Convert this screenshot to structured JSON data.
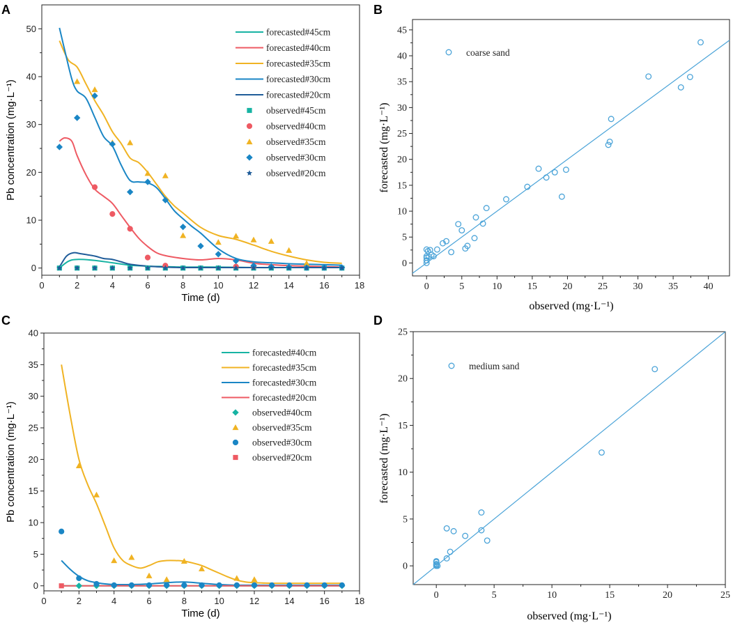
{
  "chart_data": [
    {
      "panel": "A",
      "type": "line",
      "xlabel": "Time (d)",
      "ylabel": "Pb concentration (mg·L⁻¹)",
      "xlim": [
        0,
        18
      ],
      "ylim": [
        -1.5,
        55
      ],
      "xticks": [
        0,
        2,
        4,
        6,
        8,
        10,
        12,
        14,
        16,
        18
      ],
      "yticks": [
        0,
        10,
        20,
        30,
        40,
        50
      ],
      "colors": {
        "45": "#17b3a3",
        "40": "#ee5a63",
        "35": "#f0b323",
        "30": "#1a86c5",
        "20": "#1f5c99"
      },
      "lines": [
        {
          "name": "forecasted#45cm",
          "depth": "45",
          "x": [
            1,
            1.5,
            2,
            3,
            4,
            5,
            6,
            7,
            8,
            10,
            12,
            14,
            16,
            17
          ],
          "y": [
            0,
            1.4,
            1.8,
            1.6,
            1.1,
            0.6,
            0.4,
            0.3,
            0.2,
            0.2,
            0.1,
            0.1,
            0.1,
            0.1
          ]
        },
        {
          "name": "forecasted#40cm",
          "depth": "40",
          "x": [
            1,
            1.3,
            1.7,
            2,
            2.5,
            3,
            3.5,
            4,
            4.5,
            5,
            5.5,
            6,
            6.5,
            7,
            8,
            9,
            10,
            11,
            12,
            13,
            14,
            15,
            16,
            17
          ],
          "y": [
            26.5,
            27.2,
            26.5,
            23.5,
            19.5,
            16.5,
            15,
            13.5,
            11,
            8.5,
            6.2,
            4.5,
            3.2,
            2.6,
            2.0,
            1.7,
            2.0,
            1.7,
            1.0,
            0.7,
            0.5,
            0.4,
            0.3,
            0.2
          ]
        },
        {
          "name": "forecasted#35cm",
          "depth": "35",
          "x": [
            1,
            1.5,
            2,
            2.5,
            3,
            3.5,
            4,
            4.5,
            5,
            5.5,
            6,
            6.5,
            7,
            7.5,
            8,
            9,
            10,
            11,
            12,
            13,
            14,
            15,
            16,
            17
          ],
          "y": [
            47.5,
            43.5,
            42,
            38.5,
            35,
            32,
            28.5,
            26,
            23,
            22,
            20,
            17.5,
            15,
            13,
            11.5,
            8.5,
            6.8,
            6.0,
            4.8,
            3.5,
            2.5,
            1.7,
            1.2,
            1.0
          ]
        },
        {
          "name": "forecasted#30cm",
          "depth": "30",
          "x": [
            1,
            1.3,
            1.7,
            2,
            2.5,
            3,
            3.5,
            4,
            4.5,
            5,
            5.5,
            6,
            6.5,
            7,
            7.5,
            8,
            8.5,
            9,
            10,
            11,
            12,
            13,
            14,
            15,
            16,
            17
          ],
          "y": [
            50.2,
            45.5,
            39.5,
            37,
            35.5,
            31.5,
            27.5,
            25.5,
            21.5,
            18.3,
            18,
            17.8,
            16.8,
            14.5,
            12,
            10.3,
            8.7,
            7.3,
            4.0,
            2.0,
            1.3,
            1.1,
            0.9,
            0.8,
            0.7,
            0.6
          ]
        },
        {
          "name": "forecasted#20cm",
          "depth": "20",
          "x": [
            1,
            1.4,
            1.8,
            2.2,
            3,
            3.5,
            4,
            4.5,
            5,
            6,
            7,
            8,
            10,
            12,
            14,
            16,
            17
          ],
          "y": [
            0.2,
            2.5,
            3.2,
            3.0,
            2.5,
            2.0,
            1.8,
            1.3,
            0.8,
            0.4,
            0.2,
            0.1,
            0.1,
            0.1,
            0.1,
            0.1,
            0.1
          ]
        }
      ],
      "points": [
        {
          "name": "observed#45cm",
          "depth": "45",
          "marker": "square",
          "x": [
            1,
            2,
            3,
            4,
            5,
            6,
            7,
            8,
            9,
            10,
            11,
            12,
            13,
            14,
            15,
            16,
            17
          ],
          "y": [
            0,
            0,
            0,
            0,
            0,
            0,
            0,
            0,
            0,
            0,
            0,
            0,
            0,
            0,
            0,
            0,
            0
          ]
        },
        {
          "name": "observed#40cm",
          "depth": "40",
          "marker": "circle",
          "x": [
            3,
            4,
            5,
            6,
            7,
            11,
            12
          ],
          "y": [
            16.9,
            11.3,
            8.2,
            2.2,
            0.5,
            0.3,
            0.3
          ]
        },
        {
          "name": "observed#35cm",
          "depth": "35",
          "marker": "triangle",
          "x": [
            2,
            3,
            4,
            5,
            6,
            7,
            8,
            10,
            11,
            12,
            13,
            14,
            15
          ],
          "y": [
            39,
            37.3,
            26.2,
            26.2,
            19.8,
            19.3,
            6.8,
            5.4,
            6.7,
            5.9,
            5.6,
            3.7,
            1.0
          ]
        },
        {
          "name": "observed#30cm",
          "depth": "30",
          "marker": "diamond",
          "x": [
            1,
            2,
            3,
            4,
            5,
            6,
            7,
            8,
            9,
            10,
            11,
            12,
            13,
            14,
            15,
            16,
            17
          ],
          "y": [
            25.3,
            31.4,
            36,
            25.9,
            15.9,
            18,
            14.2,
            8.6,
            4.6,
            2.9,
            1.5,
            0.5,
            0.3,
            0.2,
            0.1,
            0.1,
            0.1
          ]
        },
        {
          "name": "observed#20cm",
          "depth": "20",
          "marker": "star",
          "x": [
            1,
            2,
            3,
            4,
            5,
            6,
            7,
            8,
            9,
            10,
            11,
            12,
            13,
            14,
            15,
            16,
            17
          ],
          "y": [
            0,
            0,
            0,
            0,
            0,
            0,
            0,
            0,
            0,
            0,
            0,
            0,
            0,
            0,
            0,
            0,
            0
          ]
        }
      ]
    },
    {
      "panel": "B",
      "type": "scatter",
      "xlabel": "observed (mg·L⁻¹)",
      "ylabel": "forecasted (mg·L⁻¹)",
      "xlim": [
        -2,
        43
      ],
      "ylim": [
        -2.5,
        47
      ],
      "xticks": [
        0,
        5,
        10,
        15,
        20,
        25,
        30,
        35,
        40
      ],
      "yticks": [
        0,
        5,
        10,
        15,
        20,
        25,
        30,
        35,
        40,
        45
      ],
      "color": "#4aa3d8",
      "legend": "coarse sand",
      "reference_line": "y = x",
      "points": [
        [
          0,
          0
        ],
        [
          0,
          0.5
        ],
        [
          0,
          1
        ],
        [
          0,
          1.3
        ],
        [
          0,
          2.6
        ],
        [
          0.2,
          2.3
        ],
        [
          0.3,
          1.2
        ],
        [
          0.5,
          2.5
        ],
        [
          0.7,
          1.6
        ],
        [
          1.0,
          1.3
        ],
        [
          1.5,
          2.6
        ],
        [
          2.3,
          3.8
        ],
        [
          2.8,
          4.2
        ],
        [
          3.5,
          2.1
        ],
        [
          4.5,
          7.5
        ],
        [
          5.0,
          6.3
        ],
        [
          5.5,
          2.8
        ],
        [
          5.8,
          3.3
        ],
        [
          6.8,
          4.8
        ],
        [
          7.0,
          8.8
        ],
        [
          8.0,
          7.6
        ],
        [
          8.5,
          10.6
        ],
        [
          11.3,
          12.3
        ],
        [
          14.3,
          14.7
        ],
        [
          15.9,
          18.2
        ],
        [
          17.0,
          16.5
        ],
        [
          18.2,
          17.5
        ],
        [
          19.2,
          12.8
        ],
        [
          19.8,
          18.0
        ],
        [
          25.8,
          22.8
        ],
        [
          26.0,
          23.4
        ],
        [
          26.2,
          27.8
        ],
        [
          31.5,
          36.0
        ],
        [
          36.1,
          33.9
        ],
        [
          37.4,
          35.9
        ],
        [
          38.9,
          42.6
        ]
      ]
    },
    {
      "panel": "C",
      "type": "line",
      "xlabel": "Time (d)",
      "ylabel": "Pb concentration (mg·L⁻¹)",
      "xlim": [
        0,
        18
      ],
      "ylim": [
        -0.8,
        40
      ],
      "xticks": [
        0,
        2,
        4,
        6,
        8,
        10,
        12,
        14,
        16,
        18
      ],
      "yticks": [
        0,
        5,
        10,
        15,
        20,
        25,
        30,
        35,
        40
      ],
      "colors": {
        "40": "#17b3a3",
        "35": "#f0b323",
        "30": "#1a86c5",
        "20": "#ee5a63"
      },
      "lines": [
        {
          "name": "forecasted#40cm",
          "depth": "40",
          "x": [
            1,
            2,
            4,
            6,
            8,
            10,
            12,
            14,
            16,
            17
          ],
          "y": [
            0,
            0,
            0,
            0,
            0,
            0,
            0,
            0,
            0,
            0
          ]
        },
        {
          "name": "forecasted#35cm",
          "depth": "35",
          "x": [
            1,
            1.5,
            2,
            2.5,
            3,
            3.5,
            4,
            4.5,
            5,
            5.5,
            6,
            6.5,
            7,
            7.5,
            8,
            8.5,
            9,
            9.5,
            10,
            10.5,
            11,
            11.5,
            12,
            13,
            14,
            15,
            16,
            17
          ],
          "y": [
            35,
            27,
            20,
            16,
            13,
            9.5,
            6,
            4,
            3.2,
            2.8,
            3.2,
            3.8,
            4.0,
            4.0,
            3.9,
            3.6,
            3.2,
            2.6,
            2.0,
            1.4,
            0.9,
            0.6,
            0.5,
            0.4,
            0.4,
            0.4,
            0.4,
            0.4
          ]
        },
        {
          "name": "forecasted#30cm",
          "depth": "30",
          "x": [
            1,
            1.5,
            2,
            2.5,
            3,
            3.5,
            4,
            5,
            6,
            7,
            8,
            9,
            10,
            11,
            12,
            14,
            16,
            17
          ],
          "y": [
            4.0,
            2.6,
            1.5,
            0.8,
            0.5,
            0.3,
            0.2,
            0.2,
            0.3,
            0.5,
            0.6,
            0.4,
            0.2,
            0.1,
            0.1,
            0.1,
            0.1,
            0.1
          ]
        },
        {
          "name": "forecasted#20cm",
          "depth": "20",
          "x": [
            1,
            2,
            4,
            6,
            8,
            10,
            12,
            14,
            16,
            17
          ],
          "y": [
            0,
            0,
            0,
            0,
            0,
            0,
            0,
            0,
            0,
            0
          ]
        }
      ],
      "points": [
        {
          "name": "observed#40cm",
          "depth": "40",
          "marker": "diamond",
          "x": [
            2,
            3,
            4,
            5,
            6,
            7,
            8,
            9,
            10,
            11,
            12,
            13,
            14,
            15,
            16,
            17
          ],
          "y": [
            0,
            0,
            0,
            0,
            0,
            0,
            0,
            0,
            0,
            0,
            0,
            0,
            0,
            0,
            0,
            0
          ]
        },
        {
          "name": "observed#35cm",
          "depth": "35",
          "marker": "triangle",
          "x": [
            2,
            3,
            4,
            5,
            6,
            7,
            8,
            9,
            11,
            12
          ],
          "y": [
            19,
            14.4,
            4.0,
            4.5,
            1.6,
            1.0,
            3.9,
            2.7,
            1.2,
            1.0
          ]
        },
        {
          "name": "observed#30cm",
          "depth": "30",
          "marker": "circle",
          "x": [
            1,
            2,
            3,
            4,
            5,
            6,
            7,
            8,
            9,
            10,
            11,
            12,
            13,
            14,
            15,
            16,
            17
          ],
          "y": [
            8.6,
            1.2,
            0.3,
            0.1,
            0.1,
            0.1,
            0.1,
            0.1,
            0.1,
            0.1,
            0.1,
            0.1,
            0.1,
            0.1,
            0.1,
            0.1,
            0.1
          ]
        },
        {
          "name": "observed#20cm",
          "depth": "20",
          "marker": "square",
          "x": [
            1
          ],
          "y": [
            0
          ]
        }
      ]
    },
    {
      "panel": "D",
      "type": "scatter",
      "xlabel": "observed (mg·L⁻¹)",
      "ylabel": "forecasted (mg·L⁻¹)",
      "xlim": [
        -2,
        25
      ],
      "ylim": [
        -2,
        25
      ],
      "xticks": [
        0,
        5,
        10,
        15,
        20,
        25
      ],
      "yticks": [
        0,
        5,
        10,
        15,
        20,
        25
      ],
      "color": "#4aa3d8",
      "legend": "medium sand",
      "reference_line": "y = x",
      "points": [
        [
          0,
          0
        ],
        [
          0,
          0.1
        ],
        [
          0,
          0.2
        ],
        [
          0,
          0.4
        ],
        [
          0,
          0.5
        ],
        [
          0.1,
          0
        ],
        [
          0.9,
          0.8
        ],
        [
          0.9,
          4.0
        ],
        [
          1.2,
          1.5
        ],
        [
          1.5,
          3.7
        ],
        [
          2.5,
          3.2
        ],
        [
          3.9,
          3.8
        ],
        [
          3.9,
          5.7
        ],
        [
          4.4,
          2.7
        ],
        [
          14.3,
          12.1
        ],
        [
          18.9,
          21.0
        ]
      ]
    }
  ]
}
